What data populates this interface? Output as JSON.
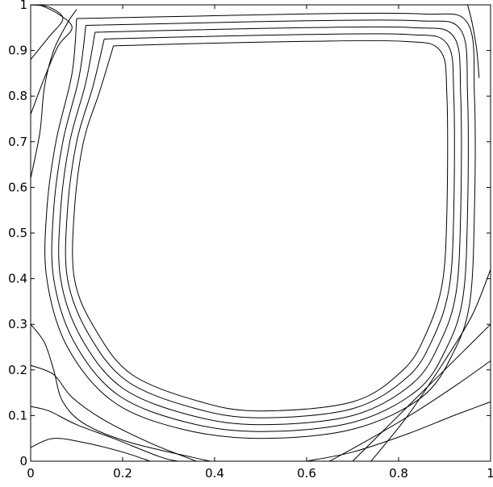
{
  "chart_data": {
    "type": "contour",
    "title": "",
    "xlabel": "",
    "ylabel": "",
    "xlim": [
      0,
      1
    ],
    "ylim": [
      0,
      1
    ],
    "grid": false,
    "legend": "none",
    "x_ticks": [
      0,
      0.2,
      0.4,
      0.6,
      0.8,
      1
    ],
    "x_tick_labels": [
      "0",
      "0.2",
      "0.4",
      "0.6",
      "0.8",
      "1"
    ],
    "y_ticks": [
      0,
      0.1,
      0.2,
      0.3,
      0.4,
      0.5,
      0.6,
      0.7,
      0.8,
      0.9,
      1
    ],
    "y_tick_labels": [
      "0",
      "0.1",
      "0.2",
      "0.3",
      "0.4",
      "0.5",
      "0.6",
      "0.7",
      "0.8",
      "0.9",
      "1"
    ],
    "line_color": "#000000",
    "primary_vortex_contours": [
      [
        [
          0.1,
          0.97
        ],
        [
          0.35,
          0.975
        ],
        [
          0.6,
          0.98
        ],
        [
          0.85,
          0.98
        ],
        [
          0.95,
          0.96
        ],
        [
          0.965,
          0.8
        ],
        [
          0.965,
          0.55
        ],
        [
          0.955,
          0.35
        ],
        [
          0.92,
          0.24
        ],
        [
          0.85,
          0.14
        ],
        [
          0.7,
          0.07
        ],
        [
          0.5,
          0.05
        ],
        [
          0.33,
          0.07
        ],
        [
          0.18,
          0.13
        ],
        [
          0.08,
          0.25
        ],
        [
          0.035,
          0.4
        ],
        [
          0.035,
          0.55
        ],
        [
          0.055,
          0.7
        ],
        [
          0.09,
          0.85
        ],
        [
          0.1,
          0.97
        ]
      ],
      [
        [
          0.12,
          0.955
        ],
        [
          0.35,
          0.96
        ],
        [
          0.6,
          0.965
        ],
        [
          0.84,
          0.965
        ],
        [
          0.935,
          0.945
        ],
        [
          0.95,
          0.8
        ],
        [
          0.95,
          0.55
        ],
        [
          0.94,
          0.36
        ],
        [
          0.905,
          0.25
        ],
        [
          0.84,
          0.155
        ],
        [
          0.7,
          0.085
        ],
        [
          0.5,
          0.065
        ],
        [
          0.34,
          0.085
        ],
        [
          0.19,
          0.145
        ],
        [
          0.095,
          0.26
        ],
        [
          0.05,
          0.4
        ],
        [
          0.05,
          0.55
        ],
        [
          0.07,
          0.7
        ],
        [
          0.105,
          0.84
        ],
        [
          0.12,
          0.955
        ]
      ],
      [
        [
          0.14,
          0.94
        ],
        [
          0.35,
          0.945
        ],
        [
          0.6,
          0.95
        ],
        [
          0.83,
          0.95
        ],
        [
          0.92,
          0.93
        ],
        [
          0.935,
          0.8
        ],
        [
          0.935,
          0.55
        ],
        [
          0.925,
          0.37
        ],
        [
          0.89,
          0.26
        ],
        [
          0.83,
          0.17
        ],
        [
          0.7,
          0.1
        ],
        [
          0.5,
          0.08
        ],
        [
          0.35,
          0.1
        ],
        [
          0.2,
          0.16
        ],
        [
          0.11,
          0.27
        ],
        [
          0.065,
          0.4
        ],
        [
          0.065,
          0.55
        ],
        [
          0.085,
          0.7
        ],
        [
          0.12,
          0.83
        ],
        [
          0.14,
          0.94
        ]
      ],
      [
        [
          0.16,
          0.925
        ],
        [
          0.35,
          0.93
        ],
        [
          0.6,
          0.935
        ],
        [
          0.82,
          0.935
        ],
        [
          0.905,
          0.915
        ],
        [
          0.92,
          0.8
        ],
        [
          0.92,
          0.55
        ],
        [
          0.91,
          0.38
        ],
        [
          0.875,
          0.27
        ],
        [
          0.82,
          0.185
        ],
        [
          0.7,
          0.115
        ],
        [
          0.5,
          0.095
        ],
        [
          0.36,
          0.115
        ],
        [
          0.21,
          0.175
        ],
        [
          0.125,
          0.28
        ],
        [
          0.08,
          0.4
        ],
        [
          0.08,
          0.55
        ],
        [
          0.1,
          0.7
        ],
        [
          0.135,
          0.82
        ],
        [
          0.16,
          0.925
        ]
      ],
      [
        [
          0.18,
          0.91
        ],
        [
          0.35,
          0.915
        ],
        [
          0.6,
          0.92
        ],
        [
          0.81,
          0.92
        ],
        [
          0.89,
          0.9
        ],
        [
          0.905,
          0.8
        ],
        [
          0.905,
          0.55
        ],
        [
          0.895,
          0.39
        ],
        [
          0.86,
          0.28
        ],
        [
          0.81,
          0.2
        ],
        [
          0.7,
          0.13
        ],
        [
          0.5,
          0.11
        ],
        [
          0.37,
          0.13
        ],
        [
          0.22,
          0.19
        ],
        [
          0.14,
          0.29
        ],
        [
          0.095,
          0.4
        ],
        [
          0.095,
          0.55
        ],
        [
          0.115,
          0.7
        ],
        [
          0.15,
          0.81
        ],
        [
          0.18,
          0.91
        ]
      ]
    ],
    "corner_eddy_contours": [
      [
        [
          0.0,
          0.03
        ],
        [
          0.05,
          0.05
        ],
        [
          0.12,
          0.04
        ],
        [
          0.2,
          0.02
        ],
        [
          0.26,
          0.0
        ]
      ],
      [
        [
          0.0,
          0.12
        ],
        [
          0.04,
          0.11
        ],
        [
          0.1,
          0.08
        ],
        [
          0.18,
          0.05
        ],
        [
          0.28,
          0.01
        ],
        [
          0.32,
          0.0
        ]
      ],
      [
        [
          0.0,
          0.21
        ],
        [
          0.05,
          0.19
        ],
        [
          0.09,
          0.14
        ],
        [
          0.16,
          0.09
        ],
        [
          0.26,
          0.04
        ],
        [
          0.36,
          0.0
        ]
      ],
      [
        [
          0.0,
          0.3
        ],
        [
          0.03,
          0.26
        ],
        [
          0.05,
          0.2
        ],
        [
          0.07,
          0.13
        ],
        [
          0.12,
          0.08
        ],
        [
          0.22,
          0.04
        ],
        [
          0.39,
          0.0
        ]
      ],
      [
        [
          0.6,
          0.0
        ],
        [
          0.7,
          0.02
        ],
        [
          0.82,
          0.06
        ],
        [
          0.92,
          0.1
        ],
        [
          1.0,
          0.13
        ]
      ],
      [
        [
          0.65,
          0.0
        ],
        [
          0.74,
          0.05
        ],
        [
          0.84,
          0.11
        ],
        [
          0.93,
          0.17
        ],
        [
          1.0,
          0.22
        ]
      ],
      [
        [
          0.7,
          0.0
        ],
        [
          0.78,
          0.08
        ],
        [
          0.86,
          0.16
        ],
        [
          0.94,
          0.24
        ],
        [
          1.0,
          0.3
        ]
      ],
      [
        [
          0.74,
          0.0
        ],
        [
          0.82,
          0.1
        ],
        [
          0.9,
          0.22
        ],
        [
          0.96,
          0.32
        ],
        [
          1.0,
          0.42
        ]
      ],
      [
        [
          0.0,
          0.62
        ],
        [
          0.02,
          0.72
        ],
        [
          0.03,
          0.82
        ],
        [
          0.05,
          0.9
        ],
        [
          0.08,
          0.96
        ],
        [
          0.1,
          0.99
        ]
      ],
      [
        [
          0.0,
          0.76
        ],
        [
          0.03,
          0.84
        ],
        [
          0.06,
          0.91
        ],
        [
          0.09,
          0.95
        ],
        [
          0.06,
          0.98
        ],
        [
          0.02,
          1.0
        ]
      ],
      [
        [
          0.0,
          0.88
        ],
        [
          0.04,
          0.93
        ],
        [
          0.07,
          0.97
        ],
        [
          0.04,
          0.995
        ],
        [
          0.0,
          1.0
        ]
      ],
      [
        [
          0.95,
          1.0
        ],
        [
          0.96,
          0.96
        ],
        [
          0.97,
          0.9
        ],
        [
          0.975,
          0.84
        ]
      ]
    ]
  }
}
